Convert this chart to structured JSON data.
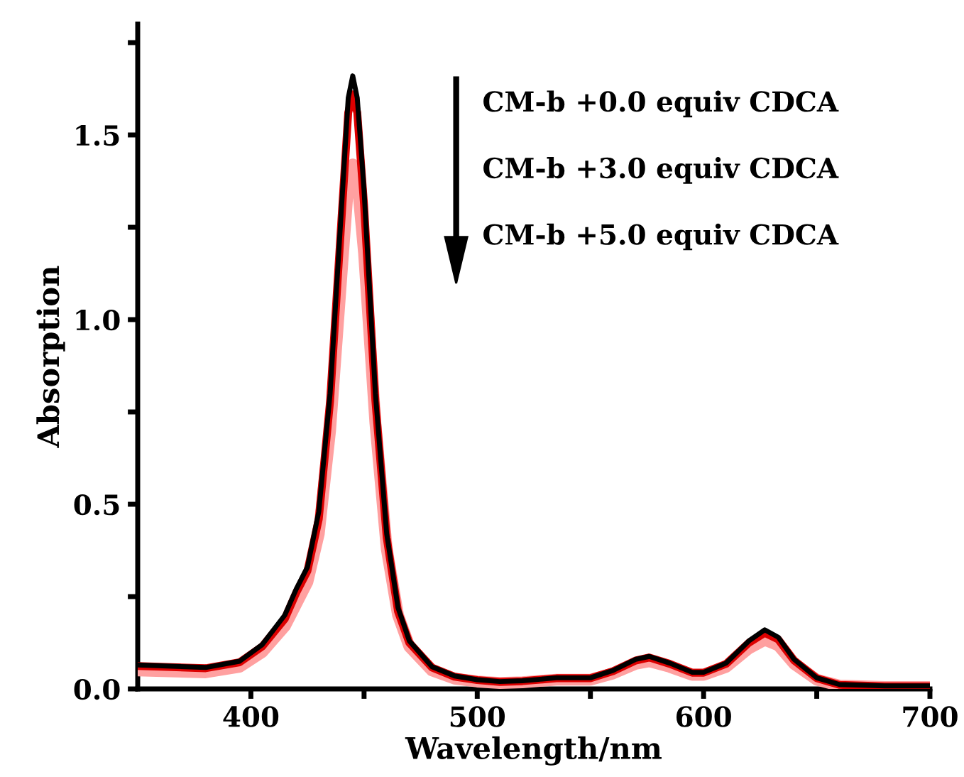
{
  "chart_data": {
    "type": "line",
    "xlabel": "Wavelength/nm",
    "ylabel": "Absorption",
    "xlim": [
      350,
      700
    ],
    "ylim": [
      0,
      1.8
    ],
    "xticks": [
      400,
      {
        "value": 450,
        "label": null
      },
      500,
      {
        "value": 550,
        "label": null
      },
      600,
      {
        "value": 650,
        "label": null
      },
      700
    ],
    "yticks": [
      {
        "value": 0,
        "label": "0.0"
      },
      {
        "value": 0.25,
        "label": null
      },
      0.5,
      {
        "value": 0.75,
        "label": null
      },
      {
        "value": 1,
        "label": "1.0"
      },
      {
        "value": 1.25,
        "label": null
      },
      1.5,
      {
        "value": 1.75,
        "label": null
      }
    ],
    "grid": false,
    "legend": false,
    "marker": "none",
    "line_style": "solid",
    "annotations": [
      "CM-b +0.0 equiv CDCA",
      "CM-b +3.0 equiv CDCA",
      "CM-b +5.0 equiv CDCA"
    ],
    "x": [
      350,
      380,
      395,
      405,
      415,
      420,
      425,
      430,
      435,
      440,
      443,
      445,
      447,
      450,
      455,
      460,
      465,
      470,
      480,
      490,
      500,
      510,
      520,
      535,
      550,
      560,
      570,
      576,
      585,
      595,
      600,
      610,
      620,
      627,
      633,
      640,
      650,
      660,
      680,
      700
    ],
    "series": [
      {
        "color": "#000000",
        "values": [
          0.065,
          0.058,
          0.075,
          0.12,
          0.2,
          0.27,
          0.33,
          0.48,
          0.8,
          1.3,
          1.6,
          1.66,
          1.6,
          1.35,
          0.8,
          0.42,
          0.22,
          0.13,
          0.06,
          0.035,
          0.025,
          0.02,
          0.022,
          0.03,
          0.03,
          0.05,
          0.08,
          0.088,
          0.07,
          0.045,
          0.045,
          0.07,
          0.13,
          0.16,
          0.14,
          0.08,
          0.03,
          0.012,
          0.008,
          0.008
        ]
      },
      {
        "color": "#dd0000",
        "values": [
          0.062,
          0.056,
          0.072,
          0.115,
          0.19,
          0.26,
          0.32,
          0.46,
          0.78,
          1.27,
          1.56,
          1.61,
          1.56,
          1.31,
          0.78,
          0.41,
          0.21,
          0.125,
          0.058,
          0.033,
          0.024,
          0.019,
          0.021,
          0.029,
          0.029,
          0.048,
          0.077,
          0.085,
          0.068,
          0.044,
          0.044,
          0.068,
          0.125,
          0.152,
          0.134,
          0.077,
          0.029,
          0.011,
          0.007,
          0.007
        ]
      },
      {
        "color": "#ffa0a0",
        "values": [
          0.05,
          0.045,
          0.06,
          0.1,
          0.17,
          0.23,
          0.29,
          0.42,
          0.7,
          1.12,
          1.37,
          1.42,
          1.38,
          1.18,
          0.72,
          0.38,
          0.2,
          0.115,
          0.05,
          0.028,
          0.02,
          0.016,
          0.018,
          0.025,
          0.025,
          0.042,
          0.068,
          0.075,
          0.06,
          0.038,
          0.038,
          0.06,
          0.11,
          0.133,
          0.118,
          0.068,
          0.025,
          0.009,
          0.005,
          0.005
        ]
      }
    ]
  }
}
